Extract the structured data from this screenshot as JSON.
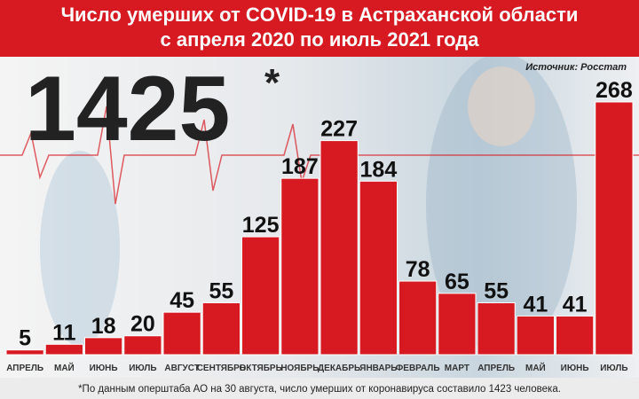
{
  "chart_data": {
    "type": "bar",
    "title": "Число умерших от COVID-19 в Астраханской области",
    "subtitle": "с апреля 2020 по июль 2021 года",
    "source": "Источник: Росстат",
    "total": "1425",
    "total_mark": "*",
    "footnote": "*По данным оперштаба АО на 30 августа, число умерших от коронавируса составило 1423 человека.",
    "categories": [
      "АПРЕЛЬ",
      "МАЙ",
      "ИЮНЬ",
      "ИЮЛЬ",
      "АВГУСТ",
      "СЕНТЯБРЬ",
      "ОКТЯБРЬ",
      "НОЯБРЬ",
      "ДЕКАБРЬ",
      "ЯНВАРЬ",
      "ФЕВРАЛЬ",
      "МАРТ",
      "АПРЕЛЬ",
      "МАЙ",
      "ИЮНЬ",
      "ИЮЛЬ"
    ],
    "values": [
      5,
      11,
      18,
      20,
      45,
      55,
      125,
      187,
      227,
      184,
      78,
      65,
      55,
      41,
      41,
      268
    ],
    "color": "#d71a21"
  }
}
